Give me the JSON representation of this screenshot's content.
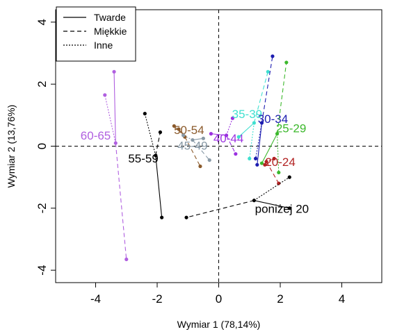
{
  "chart_data": {
    "type": "scatter",
    "xlabel": "Wymiar 1 (78,14%)",
    "ylabel": "Wymiar 2 (13,76%)",
    "xlim": [
      -5.3,
      5.3
    ],
    "ylim": [
      -4.4,
      4.4
    ],
    "xticks": [
      "-4",
      "-2",
      "0",
      "2",
      "4"
    ],
    "xtick_values": [
      -4,
      -2,
      0,
      2,
      4
    ],
    "yticks": [
      "-4",
      "-2",
      "0",
      "2",
      "4"
    ],
    "ytick_values": [
      -4,
      -2,
      0,
      2,
      4
    ],
    "reference_lines": {
      "x": 0,
      "y": 0
    },
    "legend": {
      "position": "top-left",
      "entries": [
        {
          "label": "Twarde",
          "style": "solid"
        },
        {
          "label": "Miękkie",
          "style": "dashed"
        },
        {
          "label": "Inne",
          "style": "dotted"
        }
      ]
    },
    "groups": [
      {
        "label": "60-65",
        "color": "#b05fe0",
        "center": [
          -3.35,
          0.1
        ],
        "points": [
          {
            "x": -3.4,
            "y": 2.4,
            "style": "solid"
          },
          {
            "x": -3.0,
            "y": -3.65,
            "style": "dashed"
          },
          {
            "x": -3.7,
            "y": 1.65,
            "style": "dotted"
          }
        ]
      },
      {
        "label": "55-59",
        "color": "#000000",
        "center": [
          -2.05,
          -0.3
        ],
        "points": [
          {
            "x": -1.85,
            "y": -2.3,
            "style": "solid"
          },
          {
            "x": -1.9,
            "y": 0.45,
            "style": "dashed"
          },
          {
            "x": -2.4,
            "y": 1.05,
            "style": "dotted"
          }
        ]
      },
      {
        "label": "50-54",
        "color": "#8b5a2b",
        "center": [
          -1.1,
          0.3
        ],
        "points": [
          {
            "x": -1.3,
            "y": 0.55,
            "style": "solid"
          },
          {
            "x": -0.6,
            "y": -0.65,
            "style": "dashed"
          },
          {
            "x": -1.45,
            "y": 0.65,
            "style": "dotted"
          }
        ]
      },
      {
        "label": "45-49",
        "color": "#8899a6",
        "center": [
          -0.85,
          0.2
        ],
        "points": [
          {
            "x": -0.5,
            "y": 0.25,
            "style": "solid"
          },
          {
            "x": -0.3,
            "y": -0.45,
            "style": "dashed"
          },
          {
            "x": -1.15,
            "y": 0.35,
            "style": "dotted"
          }
        ]
      },
      {
        "label": "40-44",
        "color": "#9b30e0",
        "center": [
          0.25,
          0.35
        ],
        "points": [
          {
            "x": -0.25,
            "y": 0.4,
            "style": "solid"
          },
          {
            "x": 0.55,
            "y": -0.25,
            "style": "dashed"
          },
          {
            "x": 0.45,
            "y": 0.9,
            "style": "dotted"
          }
        ]
      },
      {
        "label": "35-39",
        "color": "#40e0d0",
        "center": [
          1.15,
          0.75
        ],
        "points": [
          {
            "x": 0.65,
            "y": 0.3,
            "style": "solid"
          },
          {
            "x": 1.6,
            "y": 2.4,
            "style": "dashed"
          },
          {
            "x": 1.0,
            "y": -0.4,
            "style": "dotted"
          }
        ]
      },
      {
        "label": "30-34",
        "color": "#1c1cb0",
        "center": [
          1.4,
          0.75
        ],
        "points": [
          {
            "x": 1.25,
            "y": -0.6,
            "style": "solid"
          },
          {
            "x": 1.75,
            "y": 2.9,
            "style": "dashed"
          },
          {
            "x": 1.2,
            "y": -0.4,
            "style": "dotted"
          }
        ]
      },
      {
        "label": "25-29",
        "color": "#3cb82c",
        "center": [
          1.9,
          0.4
        ],
        "points": [
          {
            "x": 1.4,
            "y": -0.55,
            "style": "solid"
          },
          {
            "x": 2.2,
            "y": 2.7,
            "style": "dashed"
          },
          {
            "x": 1.95,
            "y": -0.85,
            "style": "dotted"
          }
        ]
      },
      {
        "label": "20-24",
        "color": "#b22222",
        "center": [
          1.55,
          -0.5
        ],
        "points": [
          {
            "x": 1.5,
            "y": -0.6,
            "style": "solid"
          },
          {
            "x": 1.95,
            "y": -1.2,
            "style": "dashed"
          },
          {
            "x": 1.8,
            "y": -0.4,
            "style": "dotted"
          }
        ]
      },
      {
        "label": "poniżej 20",
        "color": "#000000",
        "center": [
          1.15,
          -1.75
        ],
        "points": [
          {
            "x": 2.3,
            "y": -2.0,
            "style": "solid"
          },
          {
            "x": -1.05,
            "y": -2.3,
            "style": "dashed"
          },
          {
            "x": 2.3,
            "y": -1.0,
            "style": "dotted"
          }
        ]
      }
    ]
  }
}
